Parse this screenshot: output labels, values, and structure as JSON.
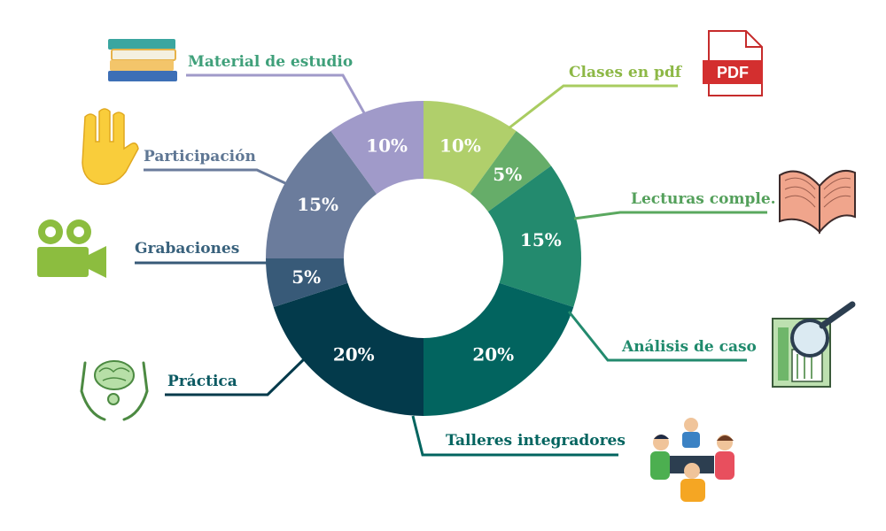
{
  "chart_data": {
    "type": "pie",
    "title": "",
    "donut": true,
    "legend": "none",
    "slices": [
      {
        "name": "Clases en pdf",
        "value": 10,
        "label": "10%",
        "color": "#b0cf6b",
        "icon": "pdf-file-icon"
      },
      {
        "name": "Lecturas comple.",
        "value": 5,
        "label": "5%",
        "color": "#66ad69",
        "icon": "open-book-icon"
      },
      {
        "name": "Análisis de caso",
        "value": 15,
        "label": "15%",
        "color": "#238a6e",
        "icon": "document-magnifier-icon"
      },
      {
        "name": "Talleres integradores",
        "value": 20,
        "label": "20%",
        "color": "#02645f",
        "icon": "team-meeting-icon"
      },
      {
        "name": "Práctica",
        "value": 20,
        "label": "20%",
        "color": "#033a4b",
        "icon": "brain-hands-icon"
      },
      {
        "name": "Grabaciones",
        "value": 5,
        "label": "5%",
        "color": "#385a78",
        "icon": "video-camera-icon"
      },
      {
        "name": "Participación",
        "value": 15,
        "label": "15%",
        "color": "#6b7c9c",
        "icon": "raised-hand-icon"
      },
      {
        "name": "Material de estudio",
        "value": 10,
        "label": "10%",
        "color": "#a09ac9",
        "icon": "book-stack-icon"
      }
    ]
  }
}
